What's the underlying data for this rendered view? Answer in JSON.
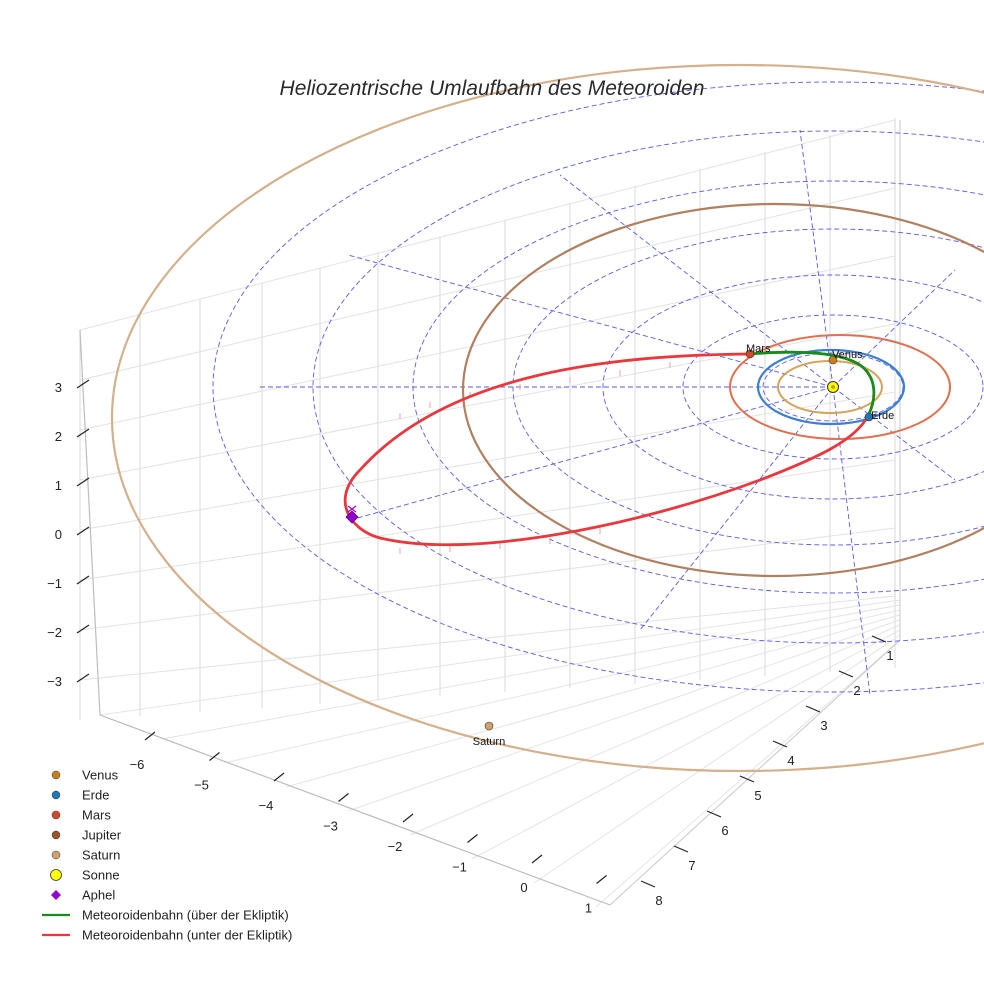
{
  "chart_data": {
    "type": "scatter3d",
    "title": "Heliozentrische Umlaufbahn des Meteoroiden",
    "axes": {
      "z_ticks": [
        3,
        2,
        1,
        0,
        -1,
        -2,
        -3
      ],
      "x_ticks": [
        -6,
        -5,
        -4,
        -3,
        -2,
        -1,
        0,
        1
      ],
      "y_ticks": [
        1,
        2,
        3,
        4,
        5,
        6,
        7,
        8
      ]
    },
    "planets": [
      {
        "name": "Venus",
        "label": "Venus",
        "color": "#c87f1e"
      },
      {
        "name": "Erde",
        "label": "Erde",
        "color": "#1f77b4"
      },
      {
        "name": "Mars",
        "label": "Mars",
        "color": "#d2492a"
      },
      {
        "name": "Jupiter",
        "label": "",
        "color": "#a0522d"
      },
      {
        "name": "Saturn",
        "label": "Saturn",
        "color": "#d2a06a"
      }
    ],
    "orbit_colors": {
      "Venus": "#d4a35a",
      "Erde": "#3a7fd0",
      "Mars": "#e07050",
      "Jupiter": "#b08060",
      "Saturn": "#d4b08c"
    },
    "sun": {
      "name": "Sonne",
      "color": "#ffff00"
    },
    "aphel": {
      "name": "Aphel",
      "color": "#9400d3"
    },
    "meteoroid": {
      "above": {
        "name": "Meteoroidenbahn (über der Ekliptik)",
        "color": "#1a8a1a"
      },
      "below": {
        "name": "Meteoroidenbahn (unter der Ekliptik)",
        "color": "#e8383d"
      }
    },
    "grid": true
  },
  "legend": [
    {
      "label": "Venus",
      "kind": "dot",
      "color": "#c87f1e"
    },
    {
      "label": "Erde",
      "kind": "dot",
      "color": "#1f77b4"
    },
    {
      "label": "Mars",
      "kind": "dot",
      "color": "#d2492a"
    },
    {
      "label": "Jupiter",
      "kind": "dot",
      "color": "#a0522d"
    },
    {
      "label": "Saturn",
      "kind": "dot",
      "color": "#d2a06a"
    },
    {
      "label": "Sonne",
      "kind": "sun",
      "color": "#ffff00"
    },
    {
      "label": "Aphel",
      "kind": "diamond",
      "color": "#9400d3"
    },
    {
      "label": "Meteoroidenbahn (über der Ekliptik)",
      "kind": "line",
      "color": "#1a8a1a"
    },
    {
      "label": "Meteoroidenbahn (unter der Ekliptik)",
      "kind": "line",
      "color": "#e8383d"
    }
  ]
}
